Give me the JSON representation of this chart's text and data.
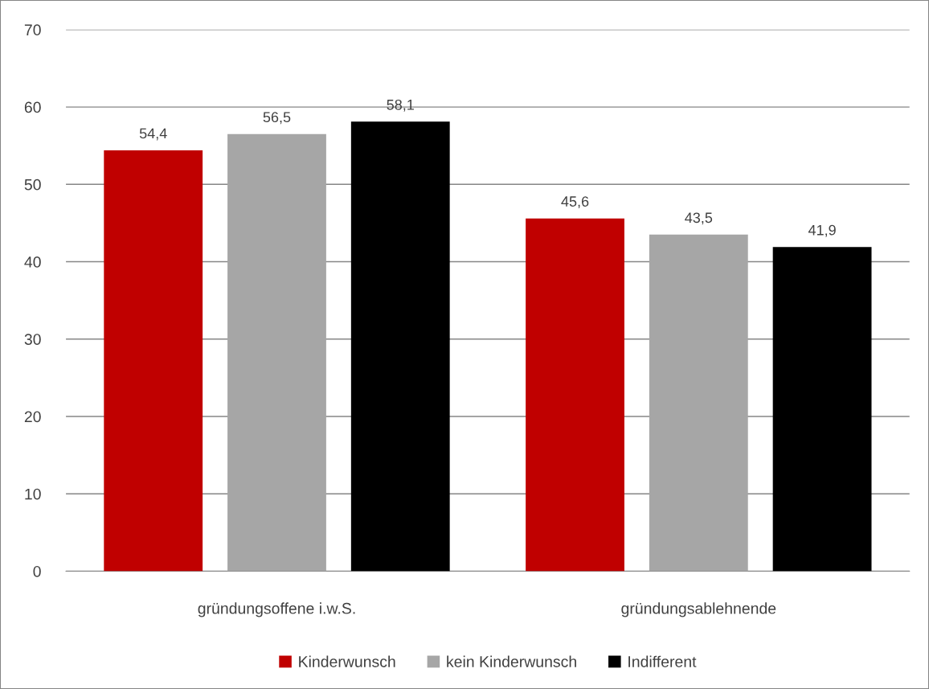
{
  "chart_data": {
    "type": "bar",
    "categories": [
      "gründungsoffene i.w.S.",
      "gründungsablehnende"
    ],
    "series": [
      {
        "name": "Kinderwunsch",
        "color": "#c00000",
        "values": [
          54.4,
          45.6
        ],
        "value_labels": [
          "54,4",
          "45,6"
        ]
      },
      {
        "name": "kein Kinderwunsch",
        "color": "#a6a6a6",
        "values": [
          56.5,
          43.5
        ],
        "value_labels": [
          "56,5",
          "43,5"
        ]
      },
      {
        "name": "Indifferent",
        "color": "#000000",
        "values": [
          58.1,
          41.9
        ],
        "value_labels": [
          "58,1",
          "41,9"
        ]
      }
    ],
    "ylim": [
      0,
      70
    ],
    "yticks": [
      0,
      10,
      20,
      30,
      40,
      50,
      60,
      70
    ],
    "grid": "y",
    "legend": "bottom"
  }
}
